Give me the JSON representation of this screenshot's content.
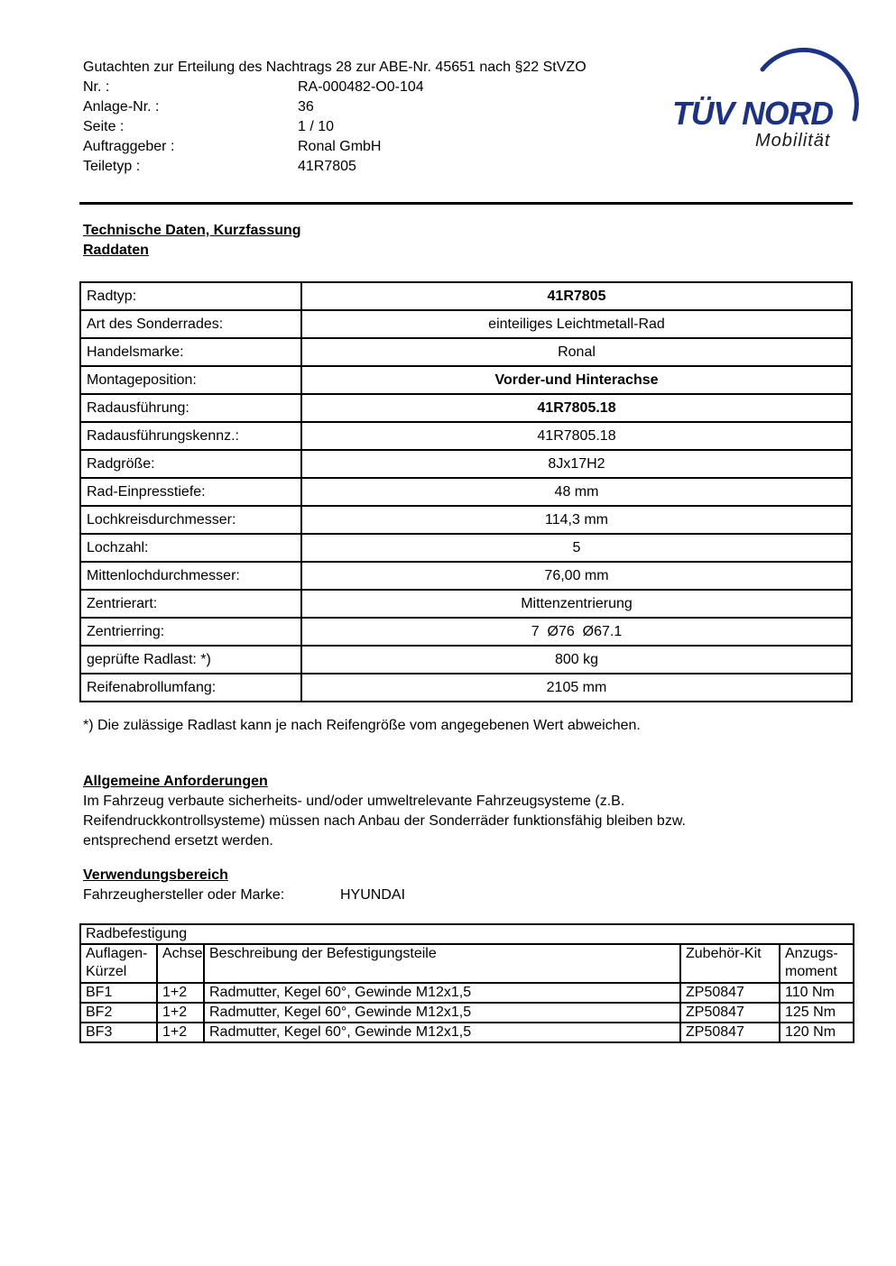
{
  "header": {
    "title": "Gutachten zur Erteilung des Nachtrags 28 zur ABE-Nr. 45651 nach §22 StVZO",
    "fields": [
      {
        "label": "Nr. :",
        "value": "RA-000482-O0-104"
      },
      {
        "label": "Anlage-Nr. :",
        "value": "36"
      },
      {
        "label": "Seite :",
        "value": "1 / 10"
      },
      {
        "label": "Auftraggeber :",
        "value": "Ronal GmbH"
      },
      {
        "label": "Teiletyp :",
        "value": "41R7805"
      }
    ]
  },
  "logo": {
    "brand": "TÜV NORD",
    "subtitle": "Mobilität",
    "brand_color": "#1b3287",
    "subtitle_color": "#1a1a1a"
  },
  "raddaten": {
    "heading": "Technische Daten, Kurzfassung",
    "subheading": "Raddaten",
    "rows": [
      {
        "label": "Radtyp:",
        "value": "41R7805",
        "bold": true
      },
      {
        "label": "Art des Sonderrades:",
        "value": "einteiliges Leichtmetall-Rad",
        "bold": false
      },
      {
        "label": "Handelsmarke:",
        "value": "Ronal",
        "bold": false
      },
      {
        "label": "Montageposition:",
        "value": "Vorder-und Hinterachse",
        "bold": true
      },
      {
        "label": "Radausführung:",
        "value": "41R7805.18",
        "bold": true
      },
      {
        "label": "Radausführungskennz.:",
        "value": "41R7805.18",
        "bold": false
      },
      {
        "label": "Radgröße:",
        "value": "8Jx17H2",
        "bold": false
      },
      {
        "label": "Rad-Einpresstiefe:",
        "value": "48 mm",
        "bold": false
      },
      {
        "label": "Lochkreisdurchmesser:",
        "value": "114,3 mm",
        "bold": false
      },
      {
        "label": "Lochzahl:",
        "value": "5",
        "bold": false
      },
      {
        "label": "Mittenlochdurchmesser:",
        "value": "76,00 mm",
        "bold": false
      },
      {
        "label": "Zentrierart:",
        "value": "Mittenzentrierung",
        "bold": false
      },
      {
        "label": "Zentrierring:",
        "value": "7  Ø76  Ø67.1",
        "bold": false
      },
      {
        "label": "geprüfte Radlast: *)",
        "value": "800 kg",
        "bold": false
      },
      {
        "label": "Reifenabrollumfang:",
        "value": "2105 mm",
        "bold": false
      }
    ],
    "footnote": "*) Die zulässige Radlast kann je nach Reifengröße vom angegebenen Wert abweichen."
  },
  "allgemeine_anforderungen": {
    "heading": "Allgemeine Anforderungen",
    "body_lines": [
      "Im Fahrzeug verbaute sicherheits- und/oder umweltrelevante Fahrzeugsysteme (z.B.",
      "Reifendruckkontrollsysteme) müssen nach Anbau der Sonderräder funktionsfähig bleiben bzw.",
      "entsprechend ersetzt werden."
    ]
  },
  "verwendungsbereich": {
    "heading": "Verwendungsbereich",
    "label": "Fahrzeughersteller oder Marke:",
    "value": "HYUNDAI"
  },
  "radbefestigung": {
    "title": "Radbefestigung",
    "headers": [
      "Auflagen-Kürzel",
      "Achse",
      "Beschreibung der Befestigungsteile",
      "Zubehör-Kit",
      "Anzugs-moment"
    ],
    "rows": [
      {
        "kuerzel": "BF1",
        "achse": "1+2",
        "beschreibung": "Radmutter, Kegel 60°, Gewinde M12x1,5",
        "kit": "ZP50847",
        "moment": "110 Nm"
      },
      {
        "kuerzel": "BF2",
        "achse": "1+2",
        "beschreibung": "Radmutter, Kegel 60°, Gewinde M12x1,5",
        "kit": "ZP50847",
        "moment": "125 Nm"
      },
      {
        "kuerzel": "BF3",
        "achse": "1+2",
        "beschreibung": "Radmutter, Kegel 60°, Gewinde M12x1,5",
        "kit": "ZP50847",
        "moment": "120 Nm"
      }
    ]
  }
}
